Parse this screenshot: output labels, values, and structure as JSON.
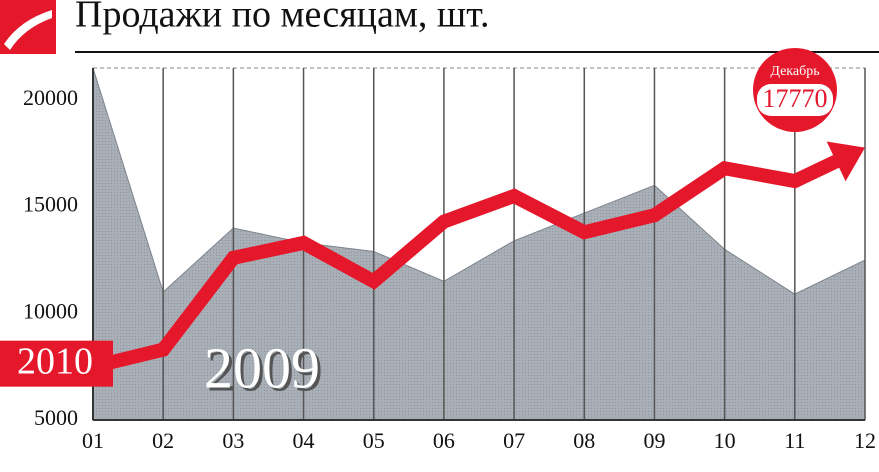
{
  "chart_data": {
    "type": "line",
    "title": "Продажи по месяцам, шт.",
    "categories": [
      "01",
      "02",
      "03",
      "04",
      "05",
      "06",
      "07",
      "08",
      "09",
      "10",
      "11",
      "12"
    ],
    "series": [
      {
        "name": "2010",
        "color": "#e5172b",
        "fill": false,
        "values": [
          7500,
          8300,
          12600,
          13300,
          11500,
          14300,
          15500,
          13800,
          14600,
          16800,
          16200,
          17770
        ]
      },
      {
        "name": "2009",
        "color": "#a9afb7",
        "fill": true,
        "values": [
          21500,
          11000,
          14000,
          13300,
          12900,
          11500,
          13400,
          14700,
          16000,
          13000,
          10900,
          12500
        ]
      }
    ],
    "annotation": "Декабрь",
    "ylim": [
      5000,
      21500
    ],
    "yticks": [
      5000,
      10000,
      15000,
      20000
    ],
    "grid": false,
    "xgrid": true
  }
}
